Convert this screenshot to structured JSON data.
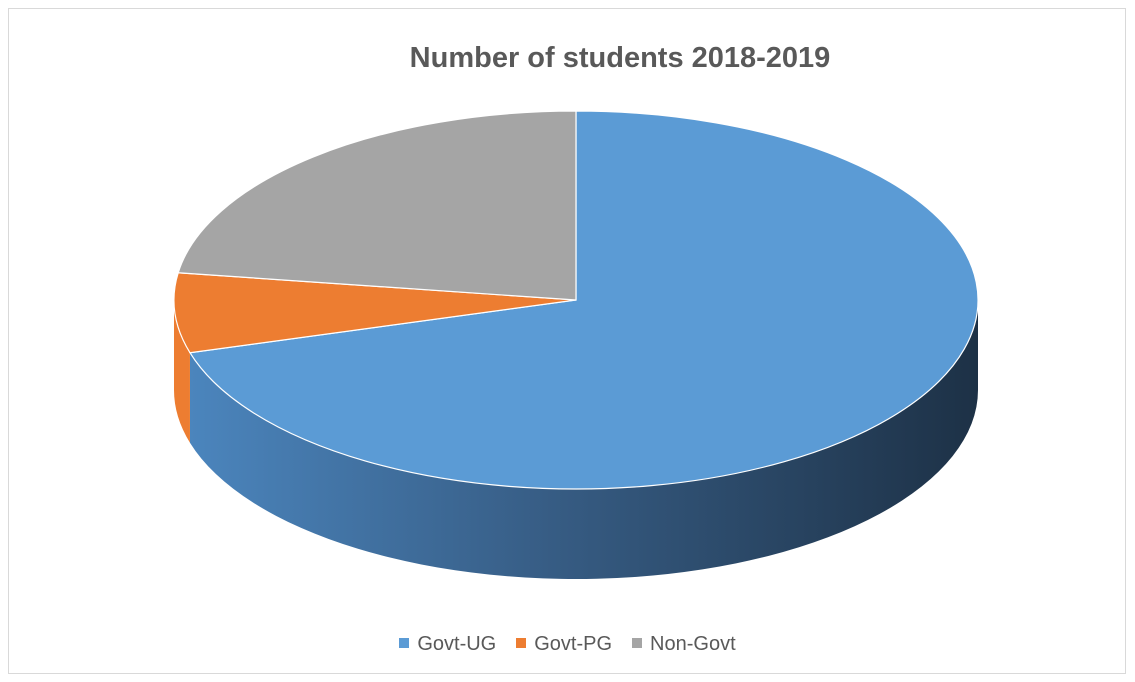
{
  "chart_data": {
    "type": "pie",
    "title": "Number of students 2018-2019",
    "categories": [
      "Govt-UG",
      "Govt-PG",
      "Non-Govt"
    ],
    "values": [
      70.5,
      6.8,
      22.7
    ],
    "colors": [
      "#5b9bd5",
      "#ed7d31",
      "#a5a5a5"
    ],
    "legend_position": "bottom",
    "style": "3d"
  }
}
